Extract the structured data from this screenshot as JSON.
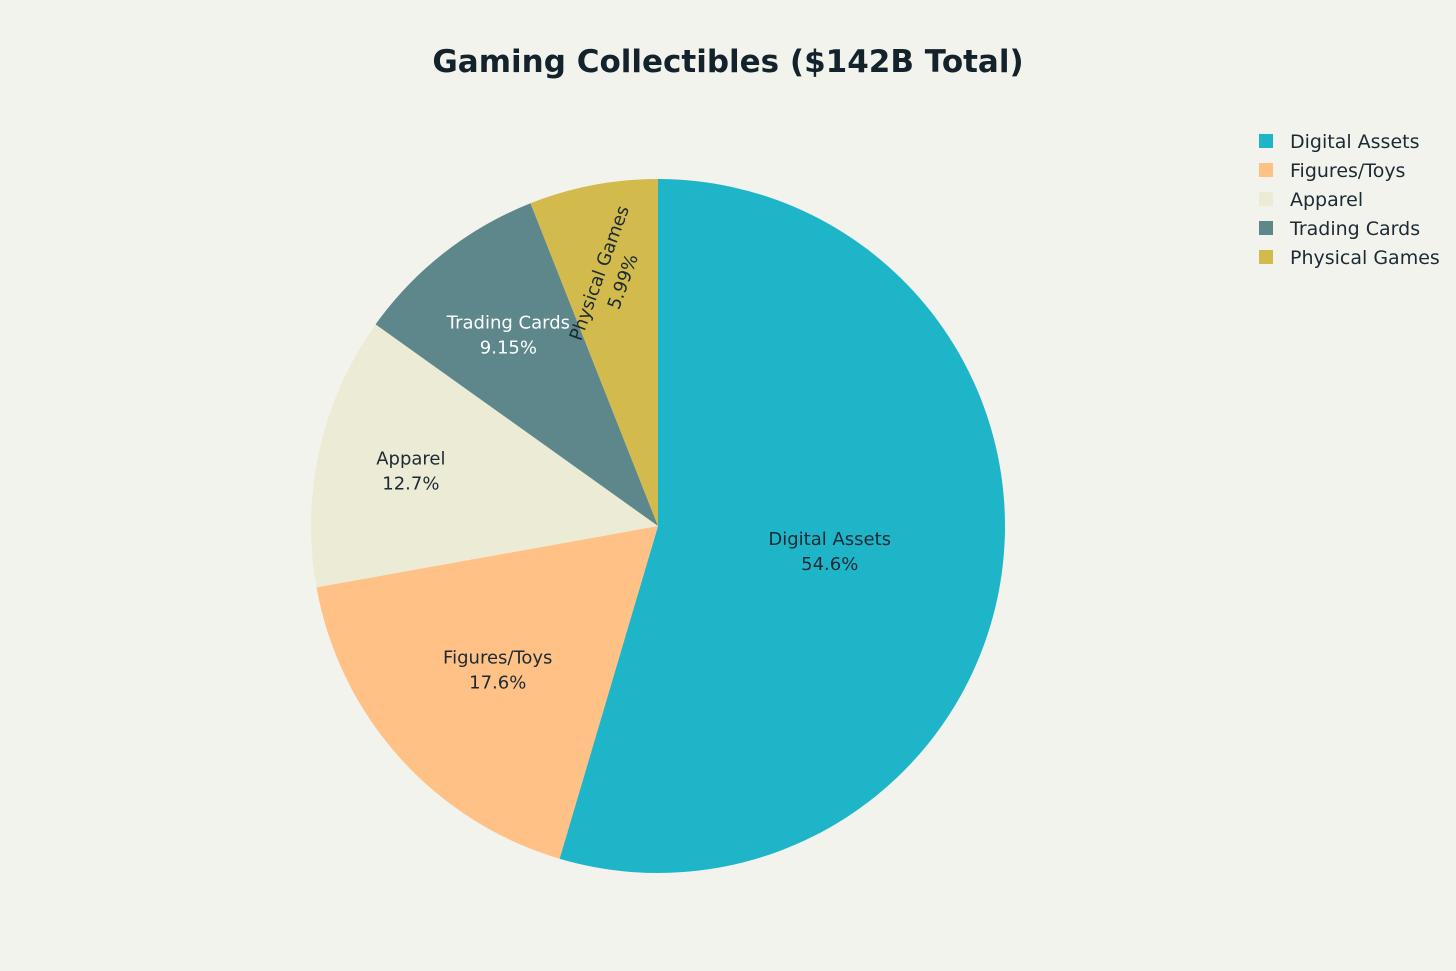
{
  "chart_data": {
    "type": "pie",
    "title": "Gaming Collectibles ($142B Total)",
    "categories": [
      "Digital Assets",
      "Figures/Toys",
      "Apparel",
      "Trading Cards",
      "Physical Games"
    ],
    "values": [
      54.6,
      17.6,
      12.7,
      9.15,
      5.99
    ],
    "value_labels": [
      "54.6%",
      "17.6%",
      "12.7%",
      "9.15%",
      "5.99%"
    ],
    "unit": "%",
    "colors": [
      "#1fb5c9",
      "#ffc185",
      "#ecebd5",
      "#5d878b",
      "#d2ba4c"
    ],
    "label_colors": [
      "#1b2a33",
      "#1b2a33",
      "#1b2a33",
      "#ffffff",
      "#1b2a33"
    ],
    "start_angle_deg": 0,
    "direction": "clockwise",
    "legend": {
      "position": "top-right",
      "entries": [
        "Digital Assets",
        "Figures/Toys",
        "Apparel",
        "Trading Cards",
        "Physical Games"
      ]
    }
  }
}
